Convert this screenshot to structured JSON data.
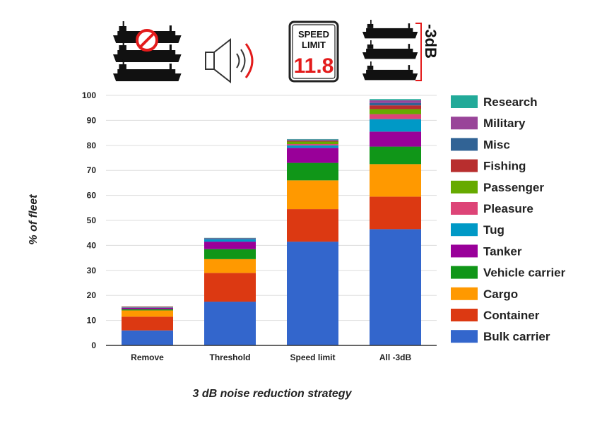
{
  "icons": {
    "remove": "no-ships-icon",
    "threshold": "speaker-icon",
    "speed_limit": "speed-limit-sign-icon",
    "all": "reduced-noise-ships-icon"
  },
  "speed_sign": {
    "line1": "SPEED",
    "line2": "LIMIT",
    "value": "11.8"
  },
  "reduction_label": "-3dB",
  "colors": {
    "Bulk carrier": "#3366cc",
    "Container": "#dc3912",
    "Cargo": "#ff9900",
    "Vehicle carrier": "#109618",
    "Tanker": "#990099",
    "Tug": "#0099c6",
    "Pleasure": "#dd4477",
    "Passenger": "#66aa00",
    "Fishing": "#b82e2e",
    "Misc": "#316395",
    "Military": "#994499",
    "Research": "#22aa99"
  },
  "chart_data": {
    "type": "bar",
    "stacked": true,
    "xlabel": "3 dB noise reduction strategy",
    "ylabel": "% of fleet",
    "ylim": [
      0,
      100
    ],
    "yticks": [
      0,
      10,
      20,
      30,
      40,
      50,
      60,
      70,
      80,
      90,
      100
    ],
    "grid": true,
    "legend_position": "right",
    "categories": [
      "Remove",
      "Threshold",
      "Speed limit",
      "All -3dB"
    ],
    "series": [
      {
        "name": "Bulk carrier",
        "values": [
          6,
          17.5,
          41.5,
          46.5
        ]
      },
      {
        "name": "Container",
        "values": [
          5.5,
          11.5,
          13,
          13
        ]
      },
      {
        "name": "Cargo",
        "values": [
          2.5,
          5.5,
          11.5,
          13
        ]
      },
      {
        "name": "Vehicle carrier",
        "values": [
          0.5,
          4,
          7,
          7
        ]
      },
      {
        "name": "Tanker",
        "values": [
          0.5,
          3,
          6,
          6
        ]
      },
      {
        "name": "Tug",
        "values": [
          0.2,
          1,
          1,
          5
        ]
      },
      {
        "name": "Pleasure",
        "values": [
          0.1,
          0,
          0.5,
          2
        ]
      },
      {
        "name": "Passenger",
        "values": [
          0.1,
          0,
          1,
          2
        ]
      },
      {
        "name": "Fishing",
        "values": [
          0.1,
          0,
          0.3,
          1.5
        ]
      },
      {
        "name": "Misc",
        "values": [
          0,
          0,
          0.2,
          1
        ]
      },
      {
        "name": "Military",
        "values": [
          0.1,
          0.3,
          0.3,
          1
        ]
      },
      {
        "name": "Research",
        "values": [
          0,
          0.2,
          0.2,
          0.5
        ]
      }
    ]
  }
}
